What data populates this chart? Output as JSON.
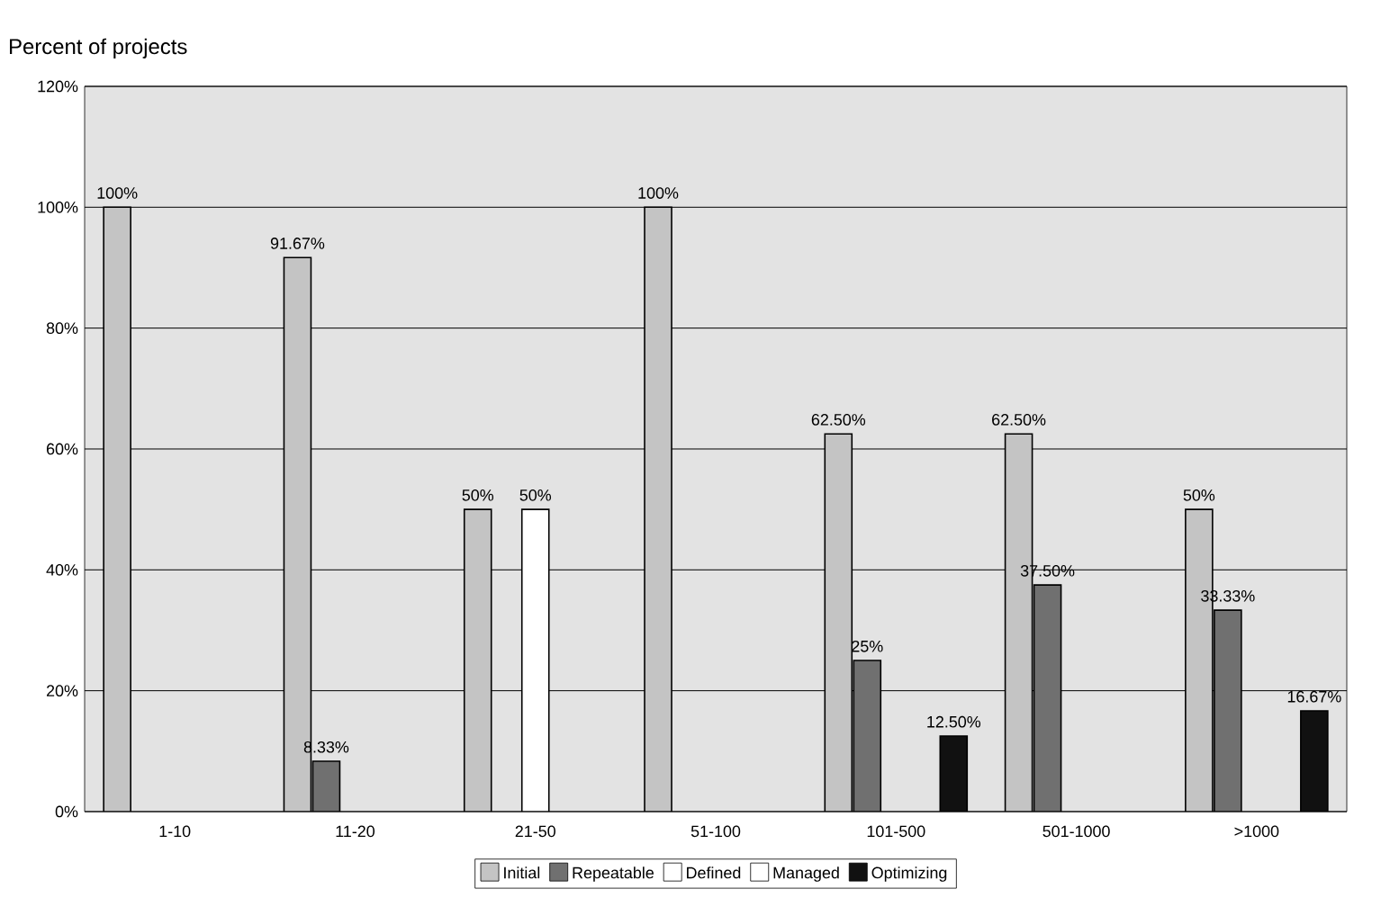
{
  "chart_data": {
    "type": "bar",
    "ylabel": "Percent of projects",
    "categories": [
      "1-10",
      "11-20",
      "21-50",
      "51-100",
      "101-500",
      "501-1000",
      ">1000"
    ],
    "series": [
      {
        "name": "Initial",
        "color": "#c4c4c4",
        "values": [
          100,
          91.67,
          50,
          100,
          62.5,
          62.5,
          50
        ],
        "value_labels": [
          "100%",
          "91.67%",
          "50%",
          "100%",
          "62.50%",
          "62.50%",
          "50%"
        ]
      },
      {
        "name": "Repeatable",
        "color": "#707070",
        "values": [
          null,
          8.33,
          null,
          null,
          25,
          37.5,
          33.33
        ],
        "value_labels": [
          null,
          "8.33%",
          null,
          null,
          "25%",
          "37.50%",
          "33.33%"
        ]
      },
      {
        "name": "Defined",
        "color": "#ffffff",
        "values": [
          null,
          null,
          50,
          null,
          null,
          null,
          null
        ],
        "value_labels": [
          null,
          null,
          "50%",
          null,
          null,
          null,
          null
        ]
      },
      {
        "name": "Managed",
        "color": "#ffffff",
        "values": [
          null,
          null,
          null,
          null,
          null,
          null,
          null
        ]
      },
      {
        "name": "Optimizing",
        "color": "#111111",
        "values": [
          null,
          null,
          null,
          null,
          12.5,
          null,
          16.67
        ],
        "value_labels": [
          null,
          null,
          null,
          null,
          "12.50%",
          null,
          "16.67%"
        ]
      }
    ],
    "ylim": [
      0,
      120
    ],
    "yticks": [
      {
        "value": 0,
        "label": "0%"
      },
      {
        "value": 20,
        "label": "20%"
      },
      {
        "value": 40,
        "label": "40%"
      },
      {
        "value": 60,
        "label": "60%"
      },
      {
        "value": 80,
        "label": "80%"
      },
      {
        "value": 100,
        "label": "100%"
      },
      {
        "value": 120,
        "label": "120%"
      }
    ],
    "grid": "y",
    "legend": "bottom"
  }
}
